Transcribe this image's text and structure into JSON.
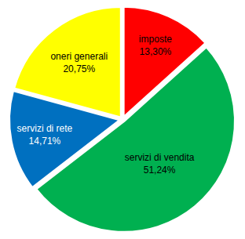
{
  "chart_data": {
    "type": "pie",
    "categories": [
      "imposte",
      "servizi di vendita",
      "servizi di rete",
      "oneri generali"
    ],
    "values": [
      13.3,
      51.24,
      14.71,
      20.75
    ],
    "value_labels": [
      "13,30%",
      "51,24%",
      "14,71%",
      "20,75%"
    ],
    "colors": [
      "#ff0000",
      "#00b050",
      "#0070c0",
      "#ffff00"
    ],
    "data_labels": true
  }
}
